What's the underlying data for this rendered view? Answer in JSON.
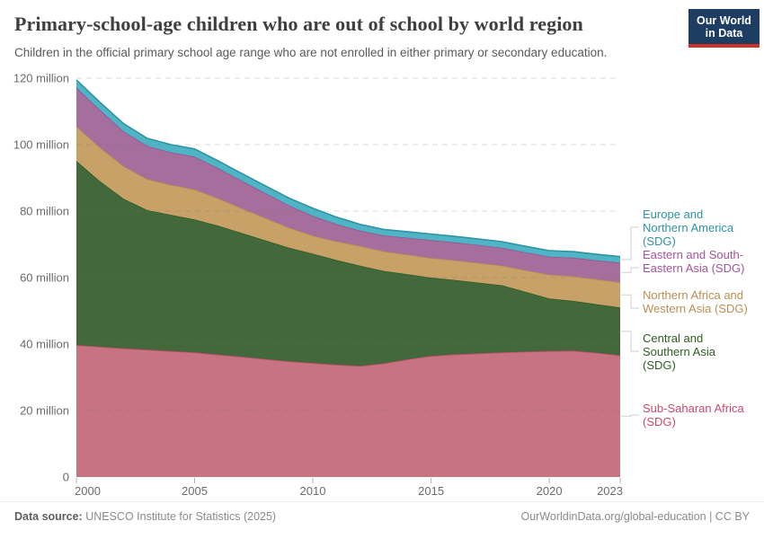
{
  "header": {
    "title": "Primary-school-age children who are out of school by world region",
    "subtitle": "Children in the official primary school age range who are not enrolled in either primary or secondary education.",
    "logo_line1": "Our World",
    "logo_line2": "in Data",
    "logo_colors": {
      "background": "#1D3D63",
      "accent": "#CF3129"
    }
  },
  "chart_data": {
    "type": "area",
    "stacked": true,
    "title": "Primary-school-age children who are out of school by world region",
    "unit": "million children",
    "grid": "dashed horizontal",
    "legend_position": "right",
    "ylim": [
      0,
      120
    ],
    "x": [
      2000,
      2001,
      2002,
      2003,
      2004,
      2005,
      2006,
      2007,
      2008,
      2009,
      2010,
      2011,
      2012,
      2013,
      2014,
      2015,
      2016,
      2017,
      2018,
      2019,
      2020,
      2021,
      2022,
      2023
    ],
    "x_tick_labels": [
      "2000",
      "2005",
      "2010",
      "2015",
      "2020",
      "2023"
    ],
    "x_tick_values": [
      2000,
      2005,
      2010,
      2015,
      2020,
      2023
    ],
    "y_ticks": [
      {
        "value": 0,
        "label": "0"
      },
      {
        "value": 20,
        "label": "20 million"
      },
      {
        "value": 40,
        "label": "40 million"
      },
      {
        "value": 60,
        "label": "60 million"
      },
      {
        "value": 80,
        "label": "80 million"
      },
      {
        "value": 100,
        "label": "100 million"
      },
      {
        "value": 120,
        "label": "120 million"
      }
    ],
    "series": [
      {
        "key": "sub-saharan-africa",
        "label": "Sub-Saharan Africa (SDG)",
        "fill": "#C87381",
        "line": "#C34A6B",
        "label_color": "#C94A6C",
        "values": [
          39.7,
          39.2,
          38.7,
          38.3,
          37.9,
          37.5,
          36.8,
          36.2,
          35.5,
          34.8,
          34.3,
          33.8,
          33.4,
          34.2,
          35.4,
          36.4,
          36.9,
          37.2,
          37.5,
          37.7,
          37.9,
          38.0,
          37.4,
          36.6
        ]
      },
      {
        "key": "central-southern-asia",
        "label": "Central and Southern Asia (SDG)",
        "fill": "#43683B",
        "line": "#2E5E23",
        "label_color": "#2E5E23",
        "values": [
          55.4,
          49.8,
          45.0,
          42.0,
          41.0,
          40.0,
          38.8,
          37.2,
          35.7,
          34.2,
          32.9,
          31.5,
          30.2,
          27.8,
          25.6,
          23.6,
          22.4,
          21.3,
          20.2,
          18.0,
          15.8,
          15.0,
          14.6,
          14.4
        ]
      },
      {
        "key": "northern-africa-western-asia",
        "label": "Northern Africa and Western Asia (SDG)",
        "fill": "#C8A169",
        "line": "#BC8E54",
        "label_color": "#BC8E54",
        "values": [
          10.4,
          10.1,
          9.8,
          9.3,
          9.0,
          9.0,
          8.2,
          7.4,
          6.7,
          6.0,
          5.4,
          5.6,
          5.9,
          5.9,
          5.9,
          5.9,
          5.9,
          5.9,
          5.9,
          6.5,
          7.2,
          7.4,
          7.5,
          7.6
        ]
      },
      {
        "key": "eastern-south-eastern-asia",
        "label": "Eastern and South-Eastern Asia (SDG)",
        "fill": "#A56E9D",
        "line": "#985290",
        "label_color": "#A2559C",
        "values": [
          11.7,
          11.3,
          10.5,
          10.0,
          9.8,
          9.9,
          9.1,
          8.3,
          7.5,
          6.7,
          6.0,
          5.2,
          4.6,
          4.8,
          5.1,
          5.4,
          5.4,
          5.4,
          5.4,
          5.4,
          5.4,
          5.6,
          5.7,
          5.9
        ]
      },
      {
        "key": "europe-northern-america",
        "label": "Europe and Northern America (SDG)",
        "fill": "#4FB5C5",
        "line": "#2E93A5",
        "label_color": "#2E93A5",
        "values": [
          2.3,
          2.3,
          2.3,
          2.3,
          2.3,
          2.3,
          2.2,
          2.2,
          2.2,
          2.2,
          2.3,
          2.1,
          1.9,
          1.8,
          1.8,
          1.8,
          1.8,
          1.8,
          1.8,
          1.8,
          1.8,
          1.8,
          1.8,
          1.8
        ]
      }
    ]
  },
  "footer": {
    "source_label": "Data source:",
    "source": " UNESCO Institute for Statistics (2025)",
    "attribution": "OurWorldinData.org/global-education | CC BY"
  }
}
